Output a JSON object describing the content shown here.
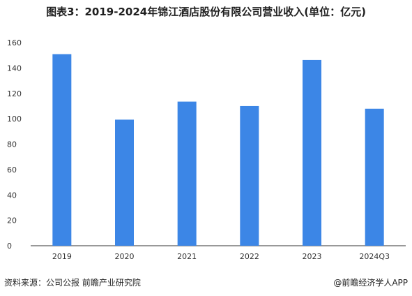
{
  "title": "图表3：2019-2024年锦江酒店股份有限公司营业收入(单位：亿元)",
  "footer": {
    "source": "资料来源：公司公报 前瞻产业研究院",
    "credit": "@前瞻经济学人APP"
  },
  "colors": {
    "bar": "#3c86e6",
    "axis": "#333333",
    "tick_text": "#333333"
  },
  "chart_data": {
    "type": "bar",
    "categories": [
      "2019",
      "2020",
      "2021",
      "2022",
      "2023",
      "2024Q3"
    ],
    "values": [
      150.9,
      99.3,
      113.5,
      110.0,
      146.3,
      107.9
    ],
    "ylim": [
      0,
      160
    ],
    "yticks": [
      0,
      20,
      40,
      60,
      80,
      100,
      120,
      140,
      160
    ],
    "xlabel": "",
    "ylabel": "",
    "grid": false
  }
}
